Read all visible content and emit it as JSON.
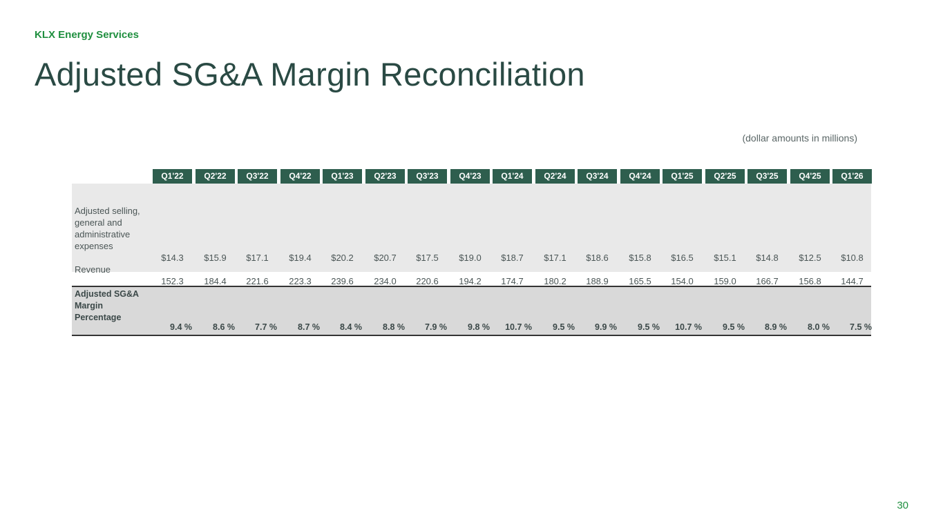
{
  "header": {
    "brand": "KLX Energy Services",
    "title": "Adjusted SG&A Margin Reconciliation",
    "note": "(dollar amounts in millions)"
  },
  "table": {
    "columns": [
      "Q1'22",
      "Q2'22",
      "Q3'22",
      "Q4'22",
      "Q1'23",
      "Q2'23",
      "Q3'23",
      "Q4'23",
      "Q1'24",
      "Q2'24",
      "Q3'24",
      "Q4'24",
      "Q1'25",
      "Q2'25",
      "Q3'25",
      "Q4'25",
      "Q1'26"
    ],
    "rows": [
      {
        "label": [
          "Adjusted selling,",
          "general and",
          "administrative",
          "expenses"
        ],
        "values": [
          "$14.3",
          "$15.9",
          "$17.1",
          "$19.4",
          "$20.2",
          "$20.7",
          "$17.5",
          "$19.0",
          "$18.7",
          "$17.1",
          "$18.6",
          "$15.8",
          "$16.5",
          "$15.1",
          "$14.8",
          "$12.5",
          "$10.8"
        ]
      },
      {
        "label": [
          "Revenue"
        ],
        "values": [
          "152.3",
          "184.4",
          "221.6",
          "223.3",
          "239.6",
          "234.0",
          "220.6",
          "194.2",
          "174.7",
          "180.2",
          "188.9",
          "165.5",
          "154.0",
          "159.0",
          "166.7",
          "156.8",
          "144.7"
        ]
      }
    ],
    "summary": {
      "label": [
        "Adjusted SG&A",
        "Margin",
        "Percentage"
      ],
      "values": [
        "9.4 %",
        "8.6 %",
        "7.7 %",
        "8.7 %",
        "8.4 %",
        "8.8 %",
        "7.9 %",
        "9.8 %",
        "10.7 %",
        "9.5 %",
        "9.9 %",
        "9.5 %",
        "10.7 %",
        "9.5 %",
        "8.9 %",
        "8.0 %",
        "7.5 %"
      ]
    }
  },
  "footer": {
    "page_number": "30"
  }
}
